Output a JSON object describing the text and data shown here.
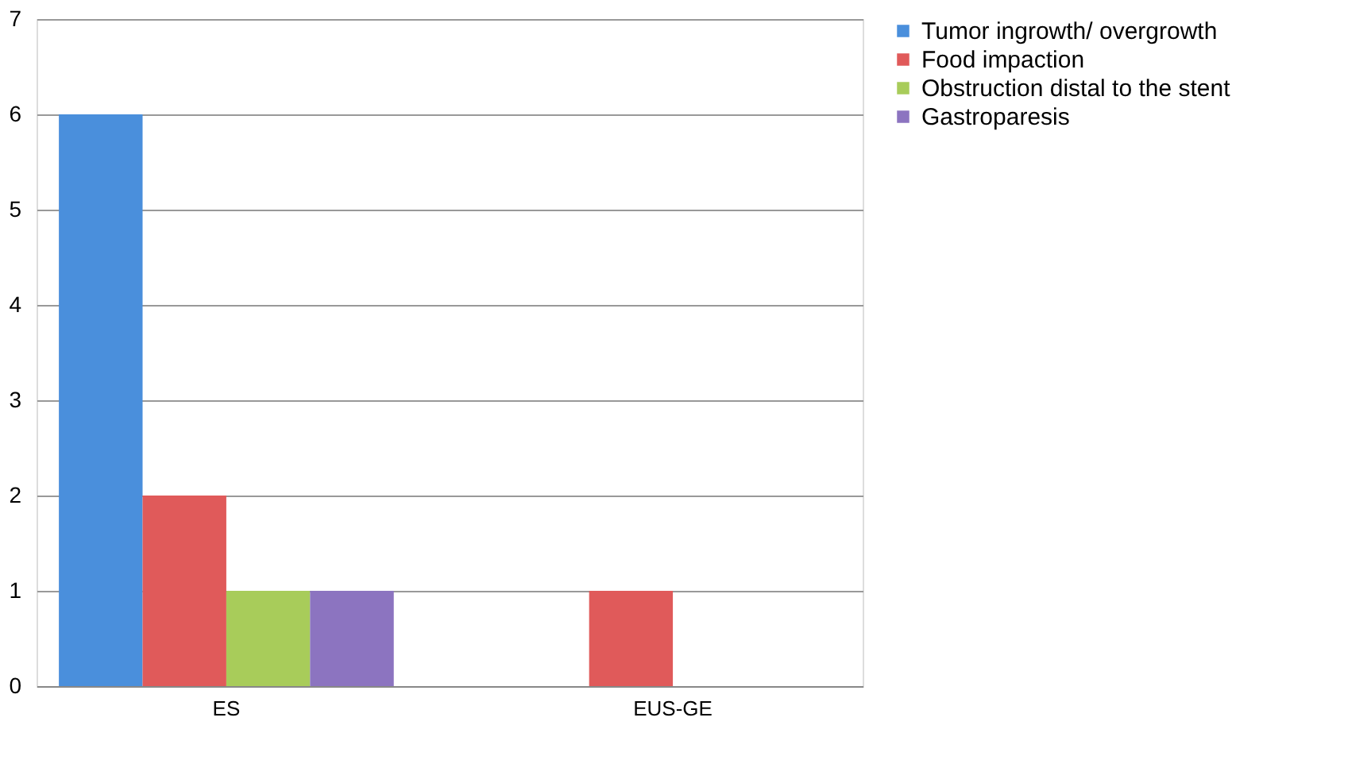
{
  "chart_data": {
    "type": "bar",
    "categories": [
      "ES",
      "EUS-GE"
    ],
    "series": [
      {
        "name": "Tumor ingrowth/ overgrowth",
        "color": "#4a8fdc",
        "values": [
          6,
          0
        ]
      },
      {
        "name": "Food impaction",
        "color": "#e05a5a",
        "values": [
          2,
          1
        ]
      },
      {
        "name": "Obstruction distal to the stent",
        "color": "#a8cc5a",
        "values": [
          1,
          0
        ]
      },
      {
        "name": "Gastroparesis",
        "color": "#8c74c0",
        "values": [
          1,
          0
        ]
      }
    ],
    "ylim": [
      0,
      7
    ],
    "yticks": [
      0,
      1,
      2,
      3,
      4,
      5,
      6,
      7
    ],
    "grid": "y",
    "legend": "right"
  }
}
